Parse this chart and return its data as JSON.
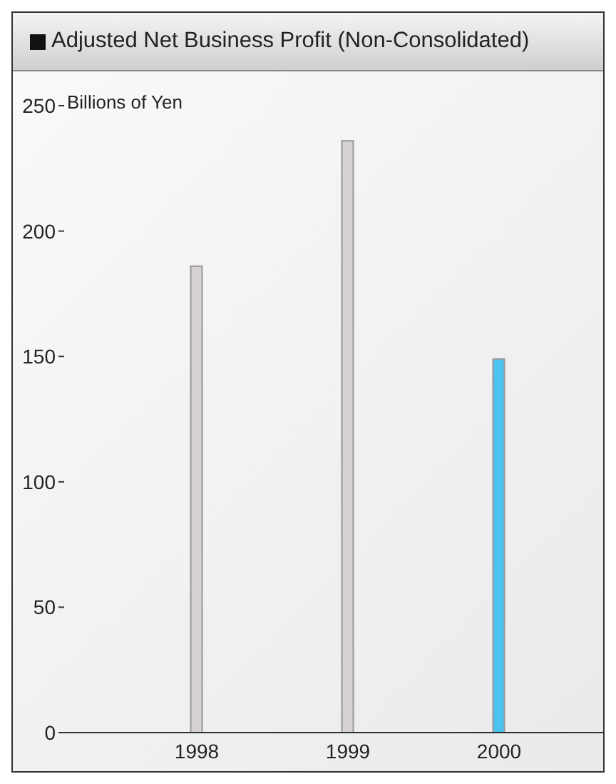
{
  "chart_data": {
    "type": "bar",
    "title": "Adjusted Net Business Profit (Non-Consolidated)",
    "ylabel": "Billions of Yen",
    "categories": [
      "1998",
      "1999",
      "2000"
    ],
    "values": [
      186,
      236,
      149
    ],
    "colors": [
      "#d6d2d2",
      "#d6d2d2",
      "#4cc2f0"
    ],
    "ylim": [
      0,
      250
    ],
    "yticks": [
      0,
      50,
      100,
      150,
      200,
      250
    ],
    "grid": false
  }
}
